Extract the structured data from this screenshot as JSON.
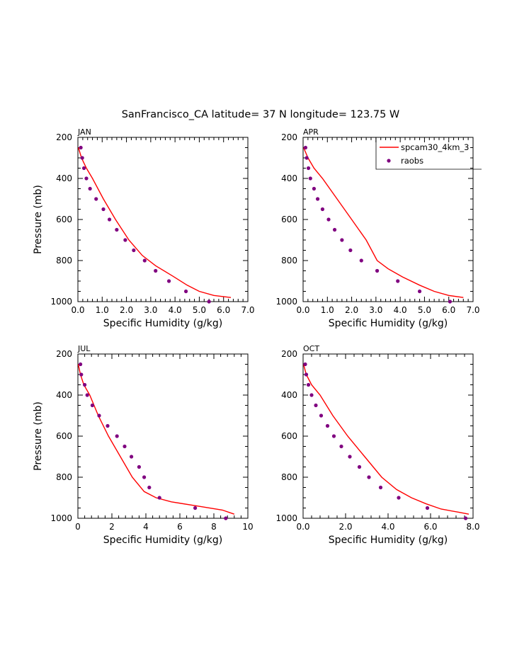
{
  "title": "SanFrancisco_CA  latitude= 37 N longitude= 123.75 W",
  "colors": {
    "model": "#ff0000",
    "obs": "#800080",
    "axis": "#000000"
  },
  "legend": {
    "model_label": "spcam30_4km_3",
    "obs_label": "raobs",
    "placement": "top-right"
  },
  "chart_data": [
    {
      "type": "line",
      "panel": "JAN",
      "xlabel": "Specific Humidity (g/kg)",
      "ylabel": "Pressure (mb)",
      "xlim": [
        0,
        7
      ],
      "ylim": [
        1000,
        200
      ],
      "y_inverted": true,
      "x_ticks": [
        0,
        1,
        2,
        3,
        4,
        5,
        6,
        7
      ],
      "x_tick_labels": [
        "0.0",
        "1.0",
        "2.0",
        "3.0",
        "4.0",
        "5.0",
        "6.0",
        "7.0"
      ],
      "y_ticks": [
        200,
        400,
        600,
        800,
        1000
      ],
      "y_tick_labels": [
        "200",
        "400",
        "600",
        "800",
        "1000"
      ],
      "series": [
        {
          "name": "spcam30_4km_3",
          "kind": "line",
          "x": [
            0.02,
            0.15,
            0.35,
            0.6,
            1.05,
            1.55,
            2.1,
            2.65,
            3.2,
            3.9,
            4.5,
            5.0,
            5.6,
            6.3
          ],
          "y": [
            250,
            300,
            350,
            400,
            500,
            600,
            700,
            775,
            825,
            875,
            920,
            950,
            970,
            980
          ]
        },
        {
          "name": "raobs",
          "kind": "scatter",
          "x": [
            0.12,
            0.18,
            0.25,
            0.35,
            0.5,
            0.75,
            1.05,
            1.3,
            1.6,
            1.95,
            2.3,
            2.75,
            3.2,
            3.75,
            4.45,
            5.4
          ],
          "y": [
            250,
            300,
            350,
            400,
            450,
            500,
            550,
            600,
            650,
            700,
            750,
            800,
            850,
            900,
            950,
            1000
          ]
        }
      ]
    },
    {
      "type": "line",
      "panel": "APR",
      "xlabel": "Specific Humidity (g/kg)",
      "ylabel": "",
      "xlim": [
        0,
        7
      ],
      "ylim": [
        1000,
        200
      ],
      "y_inverted": true,
      "x_ticks": [
        0,
        1,
        2,
        3,
        4,
        5,
        6,
        7
      ],
      "x_tick_labels": [
        "0.0",
        "1.0",
        "2.0",
        "3.0",
        "4.0",
        "5.0",
        "6.0",
        "7.0"
      ],
      "y_ticks": [
        200,
        400,
        600,
        800,
        1000
      ],
      "y_tick_labels": [
        "200",
        "400",
        "600",
        "800",
        "1000"
      ],
      "series": [
        {
          "name": "spcam30_4km_3",
          "kind": "line",
          "x": [
            0.02,
            0.2,
            0.45,
            0.8,
            1.4,
            2.0,
            2.6,
            3.05,
            3.5,
            4.1,
            4.8,
            5.4,
            6.0,
            6.6
          ],
          "y": [
            250,
            300,
            350,
            400,
            500,
            600,
            700,
            800,
            840,
            880,
            920,
            950,
            970,
            980
          ]
        },
        {
          "name": "raobs",
          "kind": "scatter",
          "x": [
            0.1,
            0.15,
            0.22,
            0.3,
            0.45,
            0.6,
            0.8,
            1.05,
            1.3,
            1.6,
            1.95,
            2.4,
            3.05,
            3.9,
            4.8,
            6.05
          ],
          "y": [
            250,
            300,
            350,
            400,
            450,
            500,
            550,
            600,
            650,
            700,
            750,
            800,
            850,
            900,
            950,
            1000
          ]
        }
      ]
    },
    {
      "type": "line",
      "panel": "JUL",
      "xlabel": "Specific Humidity (g/kg)",
      "ylabel": "Pressure (mb)",
      "xlim": [
        0,
        10
      ],
      "ylim": [
        1000,
        200
      ],
      "y_inverted": true,
      "x_ticks": [
        0,
        2,
        4,
        6,
        8,
        10
      ],
      "x_tick_labels": [
        "0",
        "2",
        "4",
        "6",
        "8",
        "10"
      ],
      "y_ticks": [
        200,
        400,
        600,
        800,
        1000
      ],
      "y_tick_labels": [
        "200",
        "400",
        "600",
        "800",
        "1000"
      ],
      "series": [
        {
          "name": "spcam30_4km_3",
          "kind": "line",
          "x": [
            0.02,
            0.15,
            0.35,
            0.7,
            1.2,
            1.8,
            2.5,
            3.2,
            3.9,
            4.6,
            5.5,
            7.0,
            8.5,
            9.2
          ],
          "y": [
            250,
            300,
            350,
            400,
            500,
            600,
            700,
            800,
            870,
            900,
            920,
            940,
            960,
            980
          ]
        },
        {
          "name": "raobs",
          "kind": "scatter",
          "x": [
            0.15,
            0.2,
            0.4,
            0.55,
            0.85,
            1.25,
            1.75,
            2.3,
            2.75,
            3.15,
            3.6,
            3.9,
            4.2,
            4.8,
            6.9,
            8.7
          ],
          "y": [
            250,
            300,
            350,
            400,
            450,
            500,
            550,
            600,
            650,
            700,
            750,
            800,
            850,
            900,
            950,
            1000
          ]
        }
      ]
    },
    {
      "type": "line",
      "panel": "OCT",
      "xlabel": "Specific Humidity (g/kg)",
      "ylabel": "",
      "xlim": [
        0,
        8
      ],
      "ylim": [
        1000,
        200
      ],
      "y_inverted": true,
      "x_ticks": [
        0,
        2,
        4,
        6,
        8
      ],
      "x_tick_labels": [
        "0.0",
        "2.0",
        "4.0",
        "6.0",
        "8.0"
      ],
      "y_ticks": [
        200,
        400,
        600,
        800,
        1000
      ],
      "y_tick_labels": [
        "200",
        "400",
        "600",
        "800",
        "1000"
      ],
      "series": [
        {
          "name": "spcam30_4km_3",
          "kind": "line",
          "x": [
            0.02,
            0.15,
            0.4,
            0.8,
            1.4,
            2.1,
            2.9,
            3.7,
            4.4,
            5.1,
            5.8,
            6.5,
            7.3,
            7.8
          ],
          "y": [
            250,
            300,
            350,
            400,
            500,
            600,
            700,
            800,
            860,
            900,
            930,
            955,
            970,
            980
          ]
        },
        {
          "name": "raobs",
          "kind": "scatter",
          "x": [
            0.1,
            0.15,
            0.25,
            0.4,
            0.6,
            0.85,
            1.15,
            1.45,
            1.8,
            2.2,
            2.65,
            3.1,
            3.65,
            4.5,
            5.85,
            7.65
          ],
          "y": [
            250,
            300,
            350,
            400,
            450,
            500,
            550,
            600,
            650,
            700,
            750,
            800,
            850,
            900,
            950,
            1000
          ]
        }
      ]
    }
  ]
}
